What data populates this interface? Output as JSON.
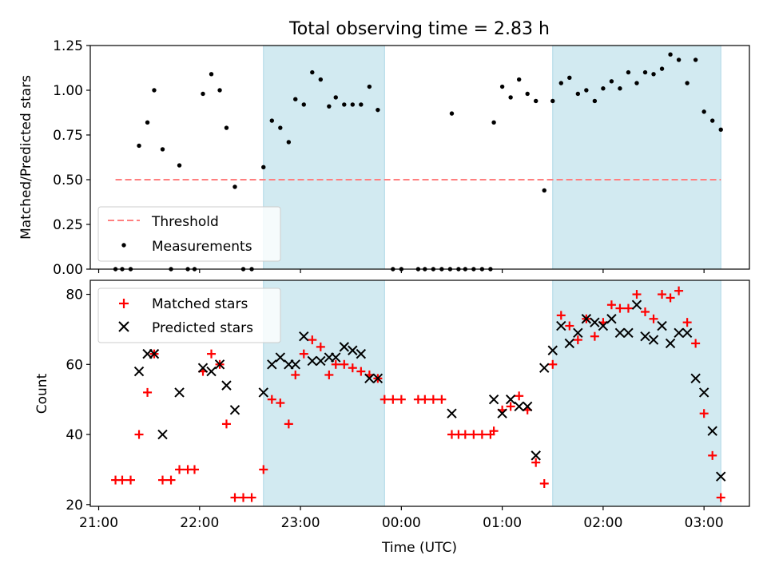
{
  "title": "Total observing time = 2.83 h",
  "colors": {
    "shade": "#add8e6",
    "threshold": "#ff7f7f",
    "measurement": "#000000",
    "matched": "#ff0000",
    "predicted": "#000000"
  },
  "chart_data": [
    {
      "type": "scatter",
      "ylabel": "Matched/Predicted stars",
      "ylim": [
        0,
        1.25
      ],
      "yticks": [
        "0.00",
        "0.25",
        "0.50",
        "0.75",
        "1.00",
        "1.25"
      ],
      "xlim": [
        "20:55",
        "03:27"
      ],
      "shaded_intervals": [
        [
          "22:38",
          "23:50"
        ],
        [
          "01:30",
          "03:10"
        ]
      ],
      "threshold": {
        "value": 0.5,
        "x_range": [
          "21:10",
          "03:10"
        ]
      },
      "legend": {
        "position": "lower-left",
        "items": [
          "Threshold",
          "Measurements"
        ]
      },
      "series": [
        {
          "name": "Measurements",
          "points": [
            [
              "21:10",
              0.0
            ],
            [
              "21:14",
              0.0
            ],
            [
              "21:19",
              0.0
            ],
            [
              "21:24",
              0.69
            ],
            [
              "21:29",
              0.82
            ],
            [
              "21:33",
              1.0
            ],
            [
              "21:38",
              0.67
            ],
            [
              "21:43",
              0.0
            ],
            [
              "21:48",
              0.58
            ],
            [
              "21:53",
              0.0
            ],
            [
              "21:57",
              0.0
            ],
            [
              "22:02",
              0.98
            ],
            [
              "22:07",
              1.09
            ],
            [
              "22:12",
              1.0
            ],
            [
              "22:16",
              0.79
            ],
            [
              "22:21",
              0.46
            ],
            [
              "22:26",
              0.0
            ],
            [
              "22:31",
              0.0
            ],
            [
              "22:38",
              0.57
            ],
            [
              "22:43",
              0.83
            ],
            [
              "22:48",
              0.79
            ],
            [
              "22:53",
              0.71
            ],
            [
              "22:57",
              0.95
            ],
            [
              "23:02",
              0.92
            ],
            [
              "23:07",
              1.1
            ],
            [
              "23:12",
              1.06
            ],
            [
              "23:17",
              0.91
            ],
            [
              "23:21",
              0.96
            ],
            [
              "23:26",
              0.92
            ],
            [
              "23:31",
              0.92
            ],
            [
              "23:36",
              0.92
            ],
            [
              "23:41",
              1.02
            ],
            [
              "23:46",
              0.89
            ],
            [
              "23:55",
              0.0
            ],
            [
              "00:00",
              0.0
            ],
            [
              "00:10",
              0.0
            ],
            [
              "00:14",
              0.0
            ],
            [
              "00:19",
              0.0
            ],
            [
              "00:24",
              0.0
            ],
            [
              "00:29",
              0.0
            ],
            [
              "00:30",
              0.87
            ],
            [
              "00:34",
              0.0
            ],
            [
              "00:38",
              0.0
            ],
            [
              "00:43",
              0.0
            ],
            [
              "00:48",
              0.0
            ],
            [
              "00:53",
              0.0
            ],
            [
              "00:55",
              0.82
            ],
            [
              "01:00",
              1.02
            ],
            [
              "01:05",
              0.96
            ],
            [
              "01:10",
              1.06
            ],
            [
              "01:15",
              0.98
            ],
            [
              "01:20",
              0.94
            ],
            [
              "01:25",
              0.44
            ],
            [
              "01:30",
              0.94
            ],
            [
              "01:35",
              1.04
            ],
            [
              "01:40",
              1.07
            ],
            [
              "01:45",
              0.98
            ],
            [
              "01:50",
              1.0
            ],
            [
              "01:55",
              0.94
            ],
            [
              "02:00",
              1.01
            ],
            [
              "02:05",
              1.05
            ],
            [
              "02:10",
              1.01
            ],
            [
              "02:15",
              1.1
            ],
            [
              "02:20",
              1.04
            ],
            [
              "02:25",
              1.1
            ],
            [
              "02:30",
              1.09
            ],
            [
              "02:35",
              1.12
            ],
            [
              "02:40",
              1.2
            ],
            [
              "02:45",
              1.17
            ],
            [
              "02:50",
              1.04
            ],
            [
              "02:55",
              1.17
            ],
            [
              "03:00",
              0.88
            ],
            [
              "03:05",
              0.83
            ],
            [
              "03:10",
              0.78
            ]
          ]
        }
      ]
    },
    {
      "type": "scatter",
      "xlabel": "Time (UTC)",
      "ylabel": "Count",
      "ylim": [
        19.5,
        84
      ],
      "yticks": [
        "20",
        "40",
        "60",
        "80"
      ],
      "xticks": [
        "21:00",
        "22:00",
        "23:00",
        "00:00",
        "01:00",
        "02:00",
        "03:00"
      ],
      "xlim": [
        "20:55",
        "03:27"
      ],
      "shaded_intervals": [
        [
          "22:38",
          "23:50"
        ],
        [
          "01:30",
          "03:10"
        ]
      ],
      "legend": {
        "position": "top-left",
        "items": [
          "Matched stars",
          "Predicted stars"
        ]
      },
      "series": [
        {
          "name": "Matched stars",
          "marker": "plus",
          "points": [
            [
              "21:10",
              27
            ],
            [
              "21:14",
              27
            ],
            [
              "21:19",
              27
            ],
            [
              "21:24",
              40
            ],
            [
              "21:29",
              52
            ],
            [
              "21:33",
              63
            ],
            [
              "21:38",
              27
            ],
            [
              "21:43",
              27
            ],
            [
              "21:48",
              30
            ],
            [
              "21:53",
              30
            ],
            [
              "21:57",
              30
            ],
            [
              "22:02",
              58
            ],
            [
              "22:07",
              63
            ],
            [
              "22:12",
              60
            ],
            [
              "22:16",
              43
            ],
            [
              "22:21",
              22
            ],
            [
              "22:26",
              22
            ],
            [
              "22:31",
              22
            ],
            [
              "22:38",
              30
            ],
            [
              "22:43",
              50
            ],
            [
              "22:48",
              49
            ],
            [
              "22:53",
              43
            ],
            [
              "22:57",
              57
            ],
            [
              "23:02",
              63
            ],
            [
              "23:07",
              67
            ],
            [
              "23:12",
              65
            ],
            [
              "23:17",
              57
            ],
            [
              "23:21",
              60
            ],
            [
              "23:26",
              60
            ],
            [
              "23:31",
              59
            ],
            [
              "23:36",
              58
            ],
            [
              "23:41",
              57
            ],
            [
              "23:46",
              56
            ],
            [
              "23:50",
              50
            ],
            [
              "23:55",
              50
            ],
            [
              "00:00",
              50
            ],
            [
              "00:10",
              50
            ],
            [
              "00:14",
              50
            ],
            [
              "00:19",
              50
            ],
            [
              "00:24",
              50
            ],
            [
              "00:30",
              40
            ],
            [
              "00:34",
              40
            ],
            [
              "00:38",
              40
            ],
            [
              "00:43",
              40
            ],
            [
              "00:48",
              40
            ],
            [
              "00:53",
              40
            ],
            [
              "00:55",
              41
            ],
            [
              "01:00",
              47
            ],
            [
              "01:05",
              48
            ],
            [
              "01:10",
              51
            ],
            [
              "01:15",
              47
            ],
            [
              "01:20",
              32
            ],
            [
              "01:25",
              26
            ],
            [
              "01:30",
              60
            ],
            [
              "01:35",
              74
            ],
            [
              "01:40",
              71
            ],
            [
              "01:45",
              67
            ],
            [
              "01:50",
              73
            ],
            [
              "01:55",
              68
            ],
            [
              "02:00",
              72
            ],
            [
              "02:05",
              77
            ],
            [
              "02:10",
              76
            ],
            [
              "02:15",
              76
            ],
            [
              "02:20",
              80
            ],
            [
              "02:25",
              75
            ],
            [
              "02:30",
              73
            ],
            [
              "02:35",
              80
            ],
            [
              "02:40",
              79
            ],
            [
              "02:45",
              81
            ],
            [
              "02:50",
              72
            ],
            [
              "02:55",
              66
            ],
            [
              "03:00",
              46
            ],
            [
              "03:05",
              34
            ],
            [
              "03:10",
              22
            ]
          ]
        },
        {
          "name": "Predicted stars",
          "marker": "x",
          "points": [
            [
              "21:24",
              58
            ],
            [
              "21:29",
              63
            ],
            [
              "21:33",
              63
            ],
            [
              "21:38",
              40
            ],
            [
              "21:48",
              52
            ],
            [
              "22:02",
              59
            ],
            [
              "22:07",
              58
            ],
            [
              "22:12",
              60
            ],
            [
              "22:16",
              54
            ],
            [
              "22:21",
              47
            ],
            [
              "22:38",
              52
            ],
            [
              "22:43",
              60
            ],
            [
              "22:48",
              62
            ],
            [
              "22:53",
              60
            ],
            [
              "22:57",
              60
            ],
            [
              "23:02",
              68
            ],
            [
              "23:07",
              61
            ],
            [
              "23:12",
              61
            ],
            [
              "23:17",
              62
            ],
            [
              "23:21",
              62
            ],
            [
              "23:26",
              65
            ],
            [
              "23:31",
              64
            ],
            [
              "23:36",
              63
            ],
            [
              "23:41",
              56
            ],
            [
              "23:46",
              56
            ],
            [
              "00:30",
              46
            ],
            [
              "00:55",
              50
            ],
            [
              "01:00",
              46
            ],
            [
              "01:05",
              50
            ],
            [
              "01:10",
              48
            ],
            [
              "01:15",
              48
            ],
            [
              "01:20",
              34
            ],
            [
              "01:25",
              59
            ],
            [
              "01:30",
              64
            ],
            [
              "01:35",
              71
            ],
            [
              "01:40",
              66
            ],
            [
              "01:45",
              69
            ],
            [
              "01:50",
              73
            ],
            [
              "01:55",
              72
            ],
            [
              "02:00",
              71
            ],
            [
              "02:05",
              73
            ],
            [
              "02:10",
              69
            ],
            [
              "02:15",
              69
            ],
            [
              "02:20",
              77
            ],
            [
              "02:25",
              68
            ],
            [
              "02:30",
              67
            ],
            [
              "02:35",
              71
            ],
            [
              "02:40",
              66
            ],
            [
              "02:45",
              69
            ],
            [
              "02:50",
              69
            ],
            [
              "02:55",
              56
            ],
            [
              "03:00",
              52
            ],
            [
              "03:05",
              41
            ],
            [
              "03:10",
              28
            ]
          ]
        }
      ]
    }
  ]
}
